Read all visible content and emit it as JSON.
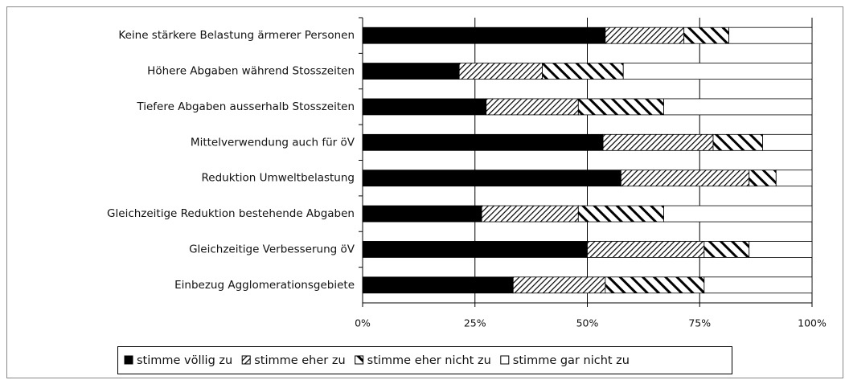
{
  "chart_data": {
    "type": "stacked-bar-horizontal",
    "categories": [
      "Keine stärkere Belastung ärmerer Personen",
      "Höhere Abgaben während Stosszeiten",
      "Tiefere Abgaben ausserhalb Stosszeiten",
      "Mittelverwendung auch für öV",
      "Reduktion Umweltbelastung",
      "Gleichzeitige Reduktion bestehende Abgaben",
      "Gleichzeitige Verbesserung öV",
      "Einbezug  Agglomerationsgebiete"
    ],
    "series": [
      {
        "name": "stimme völlig zu",
        "color": "#000000",
        "pattern": "solid",
        "values": [
          54,
          21.5,
          27.5,
          53.5,
          57.5,
          26.5,
          50,
          33.5
        ]
      },
      {
        "name": "stimme eher zu",
        "color": "#000000",
        "pattern": "fine-hatch",
        "values": [
          17.5,
          18.5,
          20.5,
          24.5,
          28.5,
          21.5,
          26,
          20.5
        ]
      },
      {
        "name": "stimme eher nicht zu",
        "color": "#000000",
        "pattern": "coarse-hatch",
        "values": [
          10,
          18,
          19,
          11,
          6,
          19,
          10,
          22
        ]
      },
      {
        "name": "stimme gar nicht zu",
        "color": "#ffffff",
        "pattern": "solid",
        "values": [
          18.5,
          42,
          33,
          11,
          8,
          33,
          14,
          24
        ]
      }
    ],
    "xlim": [
      0,
      100
    ],
    "xticks": [
      {
        "value": 0,
        "label": "0%"
      },
      {
        "value": 25,
        "label": "25%"
      },
      {
        "value": 50,
        "label": "50%"
      },
      {
        "value": 75,
        "label": "75%"
      },
      {
        "value": 100,
        "label": "100%"
      }
    ],
    "grid": true,
    "legend": "bottom"
  }
}
